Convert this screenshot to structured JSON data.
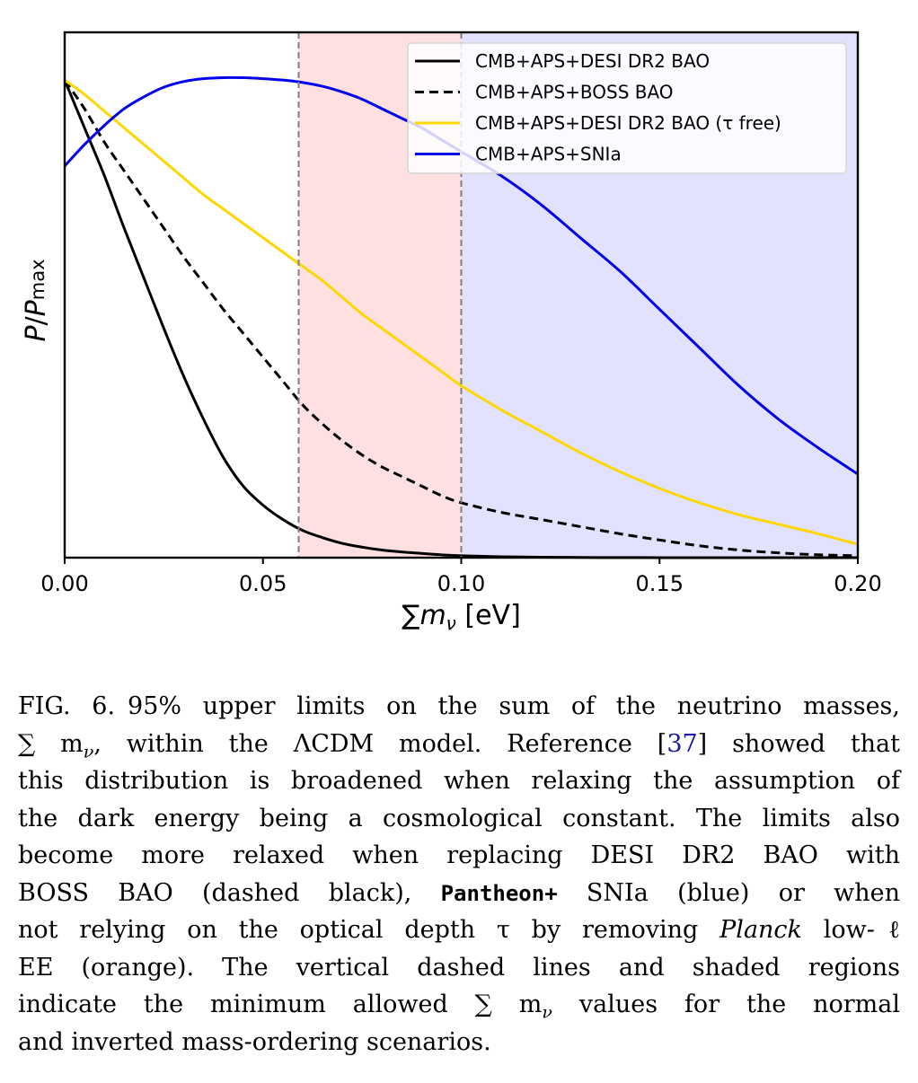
{
  "chart_data": {
    "type": "line",
    "xlabel": "∑mν [eV]",
    "ylabel": "P/Pmax",
    "xlim": [
      0.0,
      0.2
    ],
    "ylim": [
      0.0,
      1.1
    ],
    "xticks": [
      "0.00",
      "0.05",
      "0.10",
      "0.15",
      "0.20"
    ],
    "yticks": [],
    "grid": false,
    "legend_placement": "top-right",
    "vertical_lines": [
      0.059,
      0.1
    ],
    "shaded_regions": [
      {
        "from": 0.059,
        "to": 0.1,
        "color": "#ffe0e0"
      },
      {
        "from": 0.1,
        "to": 0.2,
        "color": "#e2e2ff"
      }
    ],
    "series": [
      {
        "name": "CMB+APS+DESI DR2 BAO",
        "color": "#000000",
        "style": "solid",
        "x": [
          0.0,
          0.005,
          0.01,
          0.015,
          0.02,
          0.025,
          0.03,
          0.035,
          0.04,
          0.045,
          0.05,
          0.055,
          0.06,
          0.065,
          0.07,
          0.075,
          0.08,
          0.085,
          0.09,
          0.095,
          0.1,
          0.11,
          0.12,
          0.13,
          0.14,
          0.15,
          0.16,
          0.17,
          0.18,
          0.19,
          0.2
        ],
        "y": [
          1.0,
          0.9,
          0.8,
          0.69,
          0.585,
          0.48,
          0.38,
          0.29,
          0.21,
          0.15,
          0.11,
          0.08,
          0.057,
          0.042,
          0.03,
          0.022,
          0.016,
          0.012,
          0.009,
          0.006,
          0.004,
          0.002,
          0.001,
          0.0005,
          0.0002,
          0.0001,
          0.0,
          0.0,
          0.0,
          0.0,
          0.0
        ]
      },
      {
        "name": "CMB+APS+BOSS BAO",
        "color": "#000000",
        "style": "dashed",
        "x": [
          0.0,
          0.005,
          0.01,
          0.015,
          0.02,
          0.025,
          0.03,
          0.035,
          0.04,
          0.045,
          0.05,
          0.055,
          0.06,
          0.065,
          0.07,
          0.075,
          0.08,
          0.085,
          0.09,
          0.095,
          0.1,
          0.11,
          0.12,
          0.13,
          0.14,
          0.15,
          0.16,
          0.17,
          0.18,
          0.19,
          0.2
        ],
        "y": [
          1.0,
          0.94,
          0.87,
          0.81,
          0.75,
          0.69,
          0.63,
          0.575,
          0.52,
          0.47,
          0.42,
          0.37,
          0.32,
          0.28,
          0.245,
          0.215,
          0.19,
          0.17,
          0.15,
          0.13,
          0.115,
          0.095,
          0.08,
          0.065,
          0.05,
          0.037,
          0.025,
          0.016,
          0.01,
          0.006,
          0.004
        ]
      },
      {
        "name": "CMB+APS+DESI DR2 BAO (τ free)",
        "color": "#ffd700",
        "style": "solid",
        "x": [
          0.0,
          0.005,
          0.01,
          0.015,
          0.02,
          0.025,
          0.03,
          0.035,
          0.04,
          0.045,
          0.05,
          0.055,
          0.06,
          0.065,
          0.07,
          0.075,
          0.08,
          0.085,
          0.09,
          0.095,
          0.1,
          0.11,
          0.12,
          0.13,
          0.14,
          0.15,
          0.16,
          0.17,
          0.18,
          0.19,
          0.2
        ],
        "y": [
          1.0,
          0.97,
          0.935,
          0.9,
          0.865,
          0.83,
          0.795,
          0.76,
          0.73,
          0.7,
          0.67,
          0.64,
          0.61,
          0.58,
          0.545,
          0.51,
          0.48,
          0.45,
          0.42,
          0.39,
          0.36,
          0.31,
          0.265,
          0.22,
          0.18,
          0.145,
          0.115,
          0.09,
          0.07,
          0.05,
          0.028
        ]
      },
      {
        "name": "CMB+APS+SNIa",
        "color": "#0000ee",
        "style": "solid",
        "x": [
          0.0,
          0.005,
          0.01,
          0.015,
          0.02,
          0.025,
          0.03,
          0.035,
          0.04,
          0.045,
          0.05,
          0.055,
          0.06,
          0.065,
          0.07,
          0.075,
          0.08,
          0.085,
          0.09,
          0.095,
          0.1,
          0.11,
          0.12,
          0.13,
          0.14,
          0.15,
          0.16,
          0.17,
          0.18,
          0.19,
          0.2
        ],
        "y": [
          0.82,
          0.865,
          0.905,
          0.94,
          0.965,
          0.985,
          0.997,
          1.003,
          1.005,
          1.005,
          1.003,
          1.0,
          0.995,
          0.987,
          0.975,
          0.96,
          0.94,
          0.92,
          0.9,
          0.875,
          0.85,
          0.8,
          0.74,
          0.67,
          0.6,
          0.52,
          0.44,
          0.36,
          0.29,
          0.23,
          0.175
        ]
      }
    ]
  },
  "caption": {
    "lines": [
      [
        {
          "t": "FIG. 6.",
          "c": "fig-label"
        },
        {
          "t": "95% upper limits on the sum of the neutrino masses,"
        }
      ],
      [
        {
          "t": "∑ m"
        },
        {
          "t": "ν",
          "c": "sub"
        },
        {
          "t": ", within the ΛCDM model. Reference ["
        },
        {
          "t": "37",
          "c": "ref"
        },
        {
          "t": "] showed that"
        }
      ],
      [
        {
          "t": "this distribution is broadened when relaxing the assumption of"
        }
      ],
      [
        {
          "t": "the dark energy being a cosmological constant. The limits also"
        }
      ],
      [
        {
          "t": "become more relaxed when replacing DESI DR2 BAO with"
        }
      ],
      [
        {
          "t": "BOSS BAO (dashed black), "
        },
        {
          "t": "Pantheon+",
          "c": "mono"
        },
        {
          "t": " SNIa (blue) or when"
        }
      ],
      [
        {
          "t": "not relying on the optical depth τ by removing "
        },
        {
          "t": "Planck",
          "c": "ital"
        },
        {
          "t": " low-ℓ"
        }
      ],
      [
        {
          "t": "EE (orange). The vertical dashed lines and shaded regions"
        }
      ],
      [
        {
          "t": "indicate the minimum allowed ∑ m"
        },
        {
          "t": "ν",
          "c": "sub"
        },
        {
          "t": " values for the normal"
        }
      ],
      [
        {
          "t": "and inverted mass-ordering scenarios."
        }
      ]
    ]
  }
}
